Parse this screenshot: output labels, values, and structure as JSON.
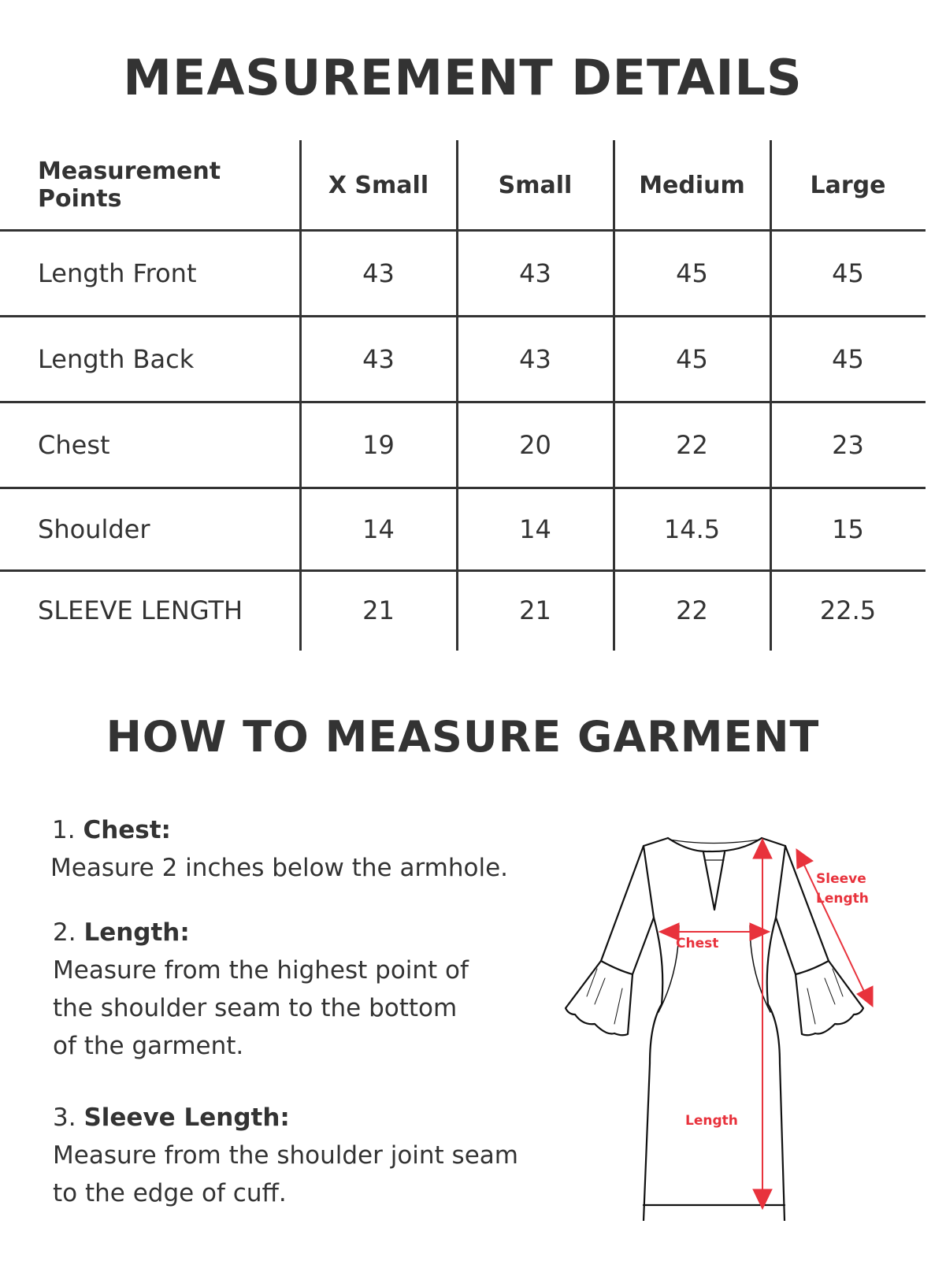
{
  "measurement_title": "MEASUREMENT DETAILS",
  "table": {
    "headers": [
      "Measurement Points",
      "X Small",
      "Small",
      "Medium",
      "Large"
    ],
    "rows": [
      {
        "label": "Length Front",
        "values": [
          "43",
          "43",
          "45",
          "45"
        ]
      },
      {
        "label": "Length Back",
        "values": [
          "43",
          "43",
          "45",
          "45"
        ]
      },
      {
        "label": "Chest",
        "values": [
          "19",
          "20",
          "22",
          "23"
        ]
      },
      {
        "label": "Shoulder",
        "values": [
          "14",
          "14",
          "14.5",
          "15"
        ]
      },
      {
        "label": "SLEEVE LENGTH",
        "values": [
          "21",
          "21",
          "22",
          "22.5"
        ]
      }
    ]
  },
  "howto_title": "HOW TO MEASURE GARMENT",
  "instructions": [
    {
      "number": "1.",
      "heading": "Chest:",
      "lines": [
        "Measure 2 inches  below the armhole."
      ]
    },
    {
      "number": "2.",
      "heading": "Length:",
      "lines": [
        "Measure from the highest point of",
        "the shoulder seam to the bottom",
        "of the garment."
      ]
    },
    {
      "number": "3.",
      "heading": "Sleeve Length:",
      "lines": [
        "Measure from the shoulder joint seam",
        "to the edge of cuff."
      ]
    }
  ],
  "diagram": {
    "chest_label": "Chest",
    "length_label": "Length",
    "sleeve_label_1": "Sleeve",
    "sleeve_label_2": "Length",
    "accent_color": "#e8323c"
  }
}
